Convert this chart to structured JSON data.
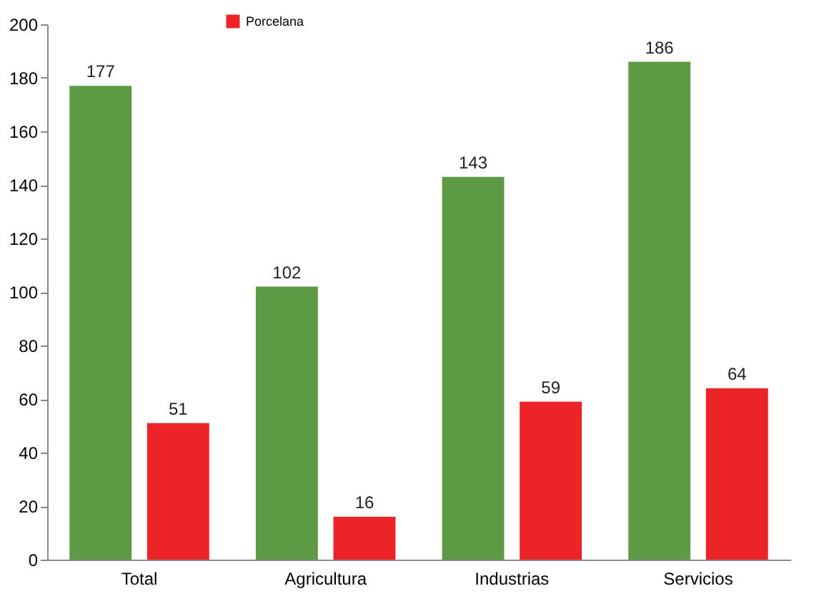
{
  "chart_data": {
    "type": "bar",
    "categories": [
      "Total",
      "Agricultura",
      "Industrias",
      "Servicios"
    ],
    "series": [
      {
        "color": "#5e9a43",
        "values": [
          177,
          102,
          143,
          186
        ]
      },
      {
        "name": "Porcelana",
        "color": "#ec2327",
        "values": [
          51,
          16,
          59,
          64
        ]
      }
    ],
    "ylim": [
      0,
      200
    ],
    "yticks": [
      0,
      20,
      40,
      60,
      80,
      100,
      120,
      140,
      160,
      180,
      200
    ],
    "grid": false,
    "legend": "top left",
    "data_labels": true
  }
}
